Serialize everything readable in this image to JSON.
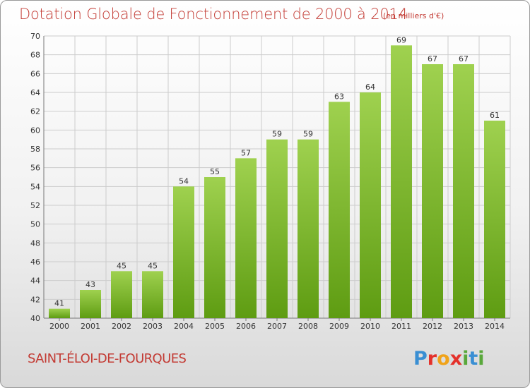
{
  "header": {
    "title": "Dotation Globale de Fonctionnement de 2000 à 2014",
    "unit": "(en milliers d'€)"
  },
  "footer": {
    "commune": "SAINT-ÉLOI-DE-FOURQUES",
    "brand_letters": [
      "P",
      "r",
      "o",
      "x",
      "i",
      "t",
      "i"
    ]
  },
  "colors": {
    "title": "#c33b34",
    "bar_light": "#9fd14f",
    "bar_dark": "#5e9c12",
    "grid": "#cccccc",
    "brand": [
      "#3a8fd3",
      "#e4312b",
      "#f0a31a",
      "#e4312b",
      "#59a83b",
      "#3a8fd3",
      "#59a83b"
    ]
  },
  "chart_data": {
    "type": "bar",
    "title": "Dotation Globale de Fonctionnement de 2000 à 2014",
    "subtitle": "(en milliers d'€)",
    "xlabel": "",
    "ylabel": "",
    "categories": [
      "2000",
      "2001",
      "2002",
      "2003",
      "2004",
      "2005",
      "2006",
      "2007",
      "2008",
      "2009",
      "2010",
      "2011",
      "2012",
      "2013",
      "2014"
    ],
    "values": [
      41,
      43,
      45,
      45,
      54,
      55,
      57,
      59,
      59,
      63,
      64,
      69,
      67,
      67,
      61
    ],
    "ylim": [
      40,
      70
    ],
    "yticks": [
      40,
      42,
      44,
      46,
      48,
      50,
      52,
      54,
      56,
      58,
      60,
      62,
      64,
      66,
      68,
      70
    ],
    "grid": true,
    "legend": "none"
  }
}
